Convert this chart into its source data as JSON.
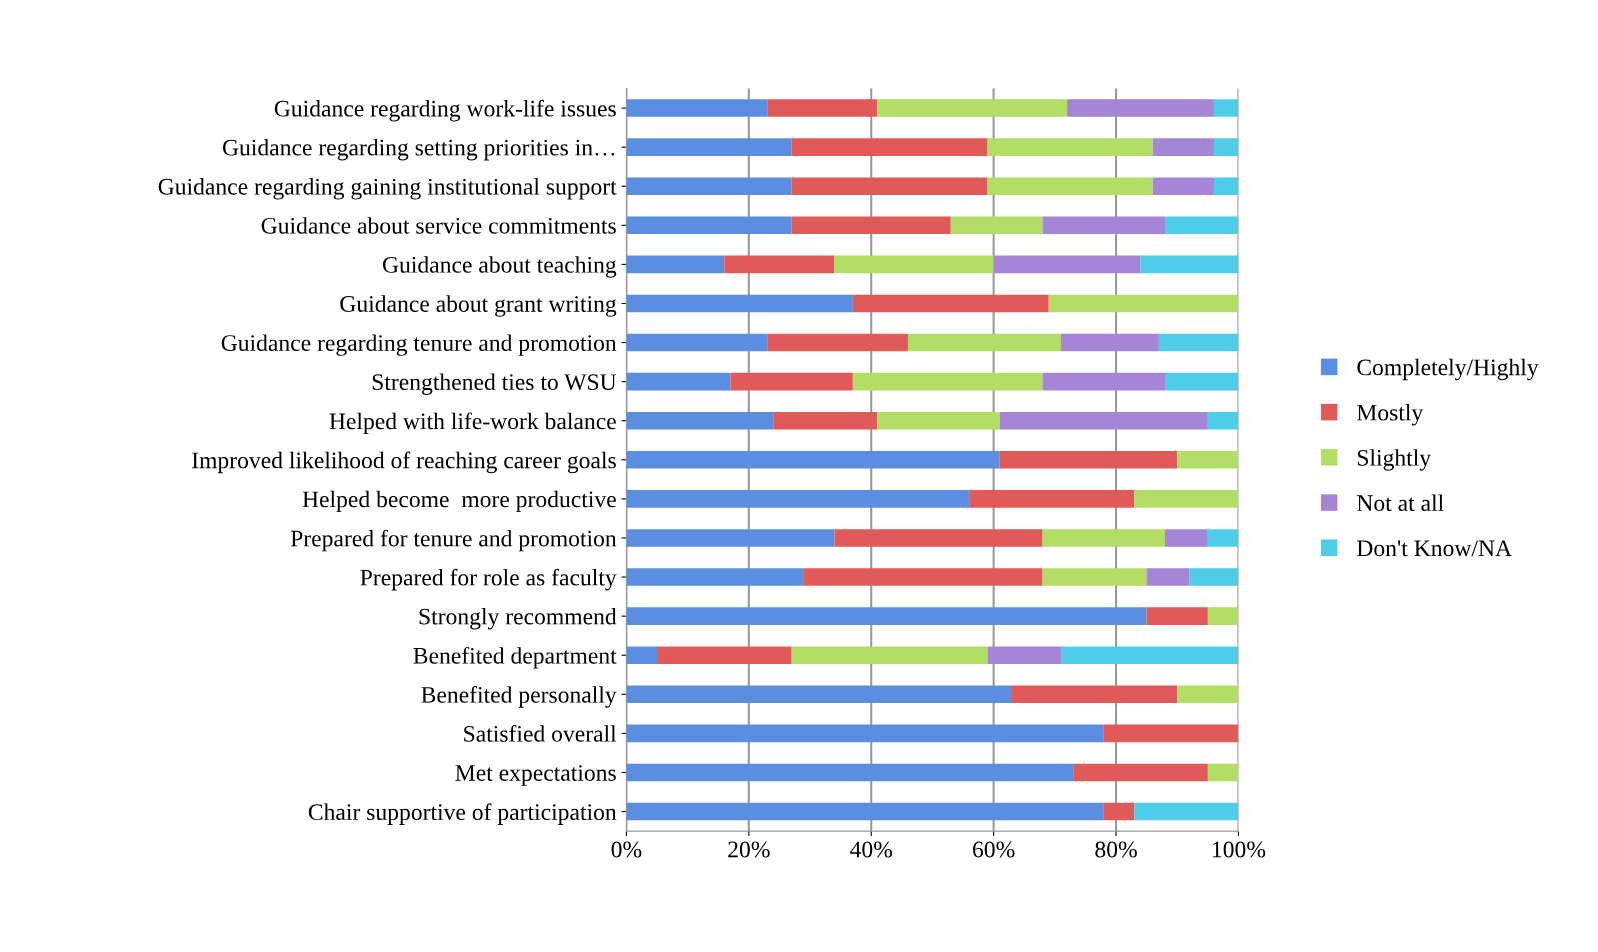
{
  "chart_data": {
    "type": "bar",
    "orientation": "horizontal",
    "stacked": true,
    "categories": [
      "Guidance regarding work-life issues",
      "Guidance regarding setting priorities in…",
      "Guidance regarding gaining institutional support",
      "Guidance about service commitments",
      "Guidance about teaching",
      "Guidance about grant writing",
      "Guidance regarding tenure and promotion",
      "Strengthened ties to WSU",
      "Helped with life-work balance",
      "Improved likelihood of reaching career goals",
      "Helped become  more productive",
      "Prepared for tenure and promotion",
      "Prepared for role as faculty",
      "Strongly recommend",
      "Benefited department",
      "Benefited personally",
      "Satisfied overall",
      "Met expectations",
      "Chair supportive of participation"
    ],
    "series": [
      {
        "name": "Completely/Highly",
        "color": "#5b8ee0",
        "values": [
          23,
          27,
          27,
          27,
          16,
          37,
          23,
          17,
          24,
          61,
          56,
          34,
          29,
          85,
          5,
          63,
          78,
          73,
          78
        ]
      },
      {
        "name": "Mostly",
        "color": "#e05a5a",
        "values": [
          18,
          32,
          32,
          26,
          18,
          32,
          23,
          20,
          17,
          29,
          27,
          34,
          39,
          10,
          22,
          27,
          22,
          22,
          5
        ]
      },
      {
        "name": "Slightly",
        "color": "#b2de66",
        "values": [
          31,
          27,
          27,
          15,
          26,
          31,
          25,
          31,
          20,
          10,
          17,
          20,
          17,
          5,
          32,
          10,
          0,
          5,
          0
        ]
      },
      {
        "name": "Not at all",
        "color": "#a585d6",
        "values": [
          24,
          10,
          10,
          20,
          24,
          0,
          16,
          20,
          34,
          0,
          0,
          7,
          7,
          0,
          12,
          0,
          0,
          0,
          0
        ]
      },
      {
        "name": "Don't Know/NA",
        "color": "#4fcde8",
        "values": [
          4,
          4,
          4,
          12,
          16,
          0,
          13,
          12,
          5,
          0,
          0,
          5,
          8,
          0,
          29,
          0,
          0,
          0,
          17
        ]
      }
    ],
    "xlim": [
      0,
      100
    ],
    "xticks": [
      {
        "value": 0,
        "label": "0%"
      },
      {
        "value": 20,
        "label": "20%"
      },
      {
        "value": 40,
        "label": "40%"
      },
      {
        "value": 60,
        "label": "60%"
      },
      {
        "value": 80,
        "label": "80%"
      },
      {
        "value": 100,
        "label": "100%"
      }
    ],
    "grid": "x",
    "legend": "right"
  }
}
